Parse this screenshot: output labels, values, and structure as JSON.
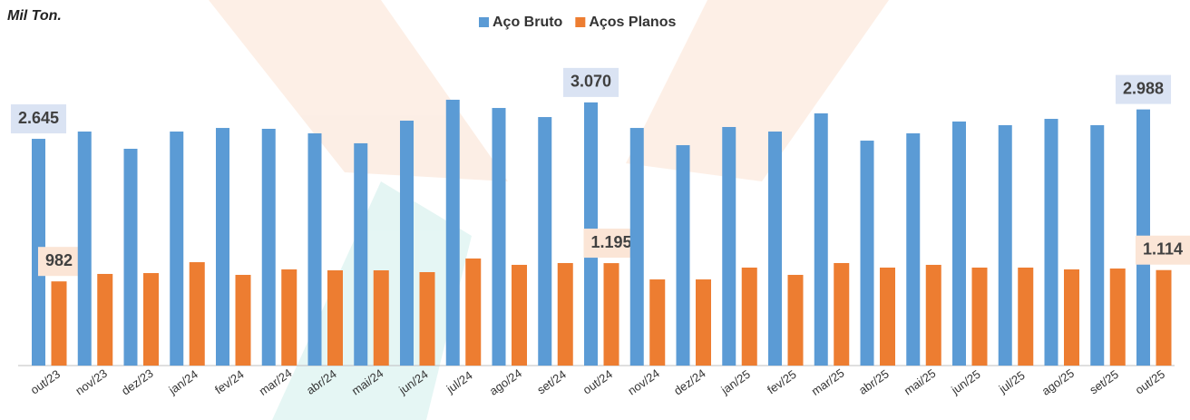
{
  "chart_data": {
    "type": "bar",
    "unit_label": "Mil Ton.",
    "categories": [
      "out/23",
      "nov/23",
      "dez/23",
      "jan/24",
      "fev/24",
      "mar/24",
      "abr/24",
      "mai/24",
      "jun/24",
      "jul/24",
      "ago/24",
      "set/24",
      "out/24",
      "nov/24",
      "dez/24",
      "jan/25",
      "fev/25",
      "mar/25",
      "abr/25",
      "mai/25",
      "jun/25",
      "jul/25",
      "ago/25",
      "set/25",
      "out/25"
    ],
    "series": [
      {
        "name": "Aço Bruto",
        "color": "#5b9bd5",
        "values": [
          2645,
          2730,
          2529,
          2730,
          2772,
          2762,
          2709,
          2593,
          2857,
          3101,
          3005,
          2899,
          3070,
          2772,
          2571,
          2783,
          2730,
          2942,
          2624,
          2709,
          2847,
          2804,
          2878,
          2804,
          2988
        ],
        "value_labels": [
          "2.645",
          null,
          null,
          null,
          null,
          null,
          null,
          null,
          null,
          null,
          null,
          null,
          "3.070",
          null,
          null,
          null,
          null,
          null,
          null,
          null,
          null,
          null,
          null,
          null,
          "2.988"
        ],
        "label_color": "#dae3f3"
      },
      {
        "name": "Aços Planos",
        "color": "#ed7d31",
        "values": [
          982,
          1069,
          1079,
          1206,
          1058,
          1122,
          1111,
          1111,
          1090,
          1249,
          1175,
          1196,
          1195,
          1005,
          1005,
          1143,
          1058,
          1196,
          1143,
          1175,
          1143,
          1143,
          1122,
          1132,
          1114
        ],
        "value_labels": [
          "982",
          null,
          null,
          null,
          null,
          null,
          null,
          null,
          null,
          null,
          null,
          null,
          "1.195",
          null,
          null,
          null,
          null,
          null,
          null,
          null,
          null,
          null,
          null,
          null,
          "1.114"
        ],
        "label_color": "#fbe5d6"
      }
    ],
    "ylim": [
      0,
      3500
    ],
    "legend": "top"
  }
}
